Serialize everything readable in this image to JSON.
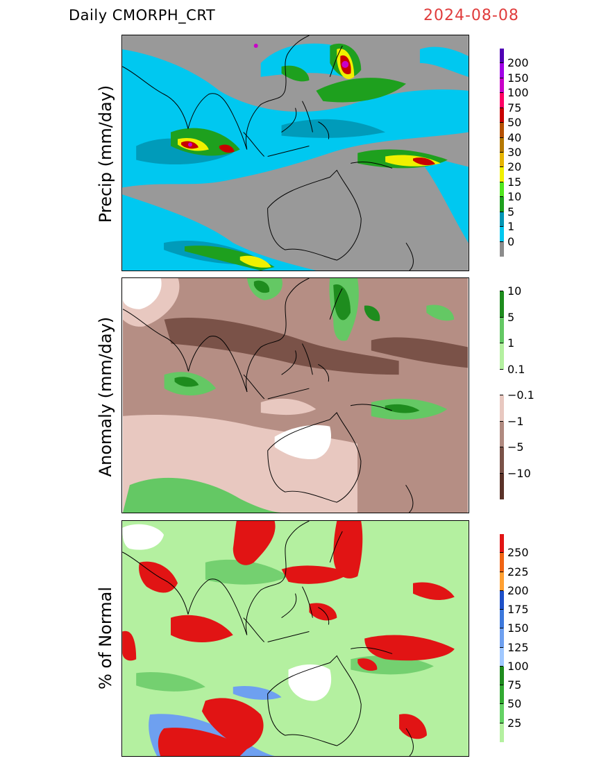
{
  "header": {
    "title": "Daily  CMORPH_CRT",
    "date": "2024-08-08"
  },
  "panels": [
    {
      "name": "precip",
      "ylabel": "Precip  (mm/day)",
      "background": "#999999",
      "colorbar": {
        "colors": [
          "#8c8c8c",
          "#00c8f0",
          "#0096b4",
          "#1ea01e",
          "#50e61e",
          "#f0f000",
          "#e6b400",
          "#b47800",
          "#b45000",
          "#c80000",
          "#ff0064",
          "#c800c8",
          "#a000e6",
          "#5000b4"
        ],
        "labels": [
          "0",
          "1",
          "5",
          "10",
          "15",
          "20",
          "30",
          "40",
          "50",
          "75",
          "100",
          "150",
          "200"
        ]
      }
    },
    {
      "name": "anomaly",
      "ylabel": "Anomaly  (mm/day)",
      "background": "#b58e84",
      "colorbar": {
        "colors": [
          "#5a3228",
          "#7a5248",
          "#b08a80",
          "#e8c8c0",
          "#ffffff",
          "#b4f0a0",
          "#64c864",
          "#1e8c1e"
        ],
        "labels": [
          "−10",
          "−5",
          "−1",
          "−0.1",
          "0.1",
          "1",
          "5",
          "10"
        ]
      }
    },
    {
      "name": "percent",
      "ylabel": "%  of  Normal",
      "background": "#b4f0a0",
      "colorbar": {
        "colors": [
          "#b4f0a0",
          "#64d264",
          "#32aa32",
          "#1e8c1e",
          "#a0c8ff",
          "#6ea0f0",
          "#3c78dc",
          "#1e50c8",
          "#ffa032",
          "#f06414",
          "#e11414"
        ],
        "labels": [
          "25",
          "50",
          "75",
          "100",
          "125",
          "150",
          "175",
          "200",
          "225",
          "250"
        ]
      }
    }
  ]
}
